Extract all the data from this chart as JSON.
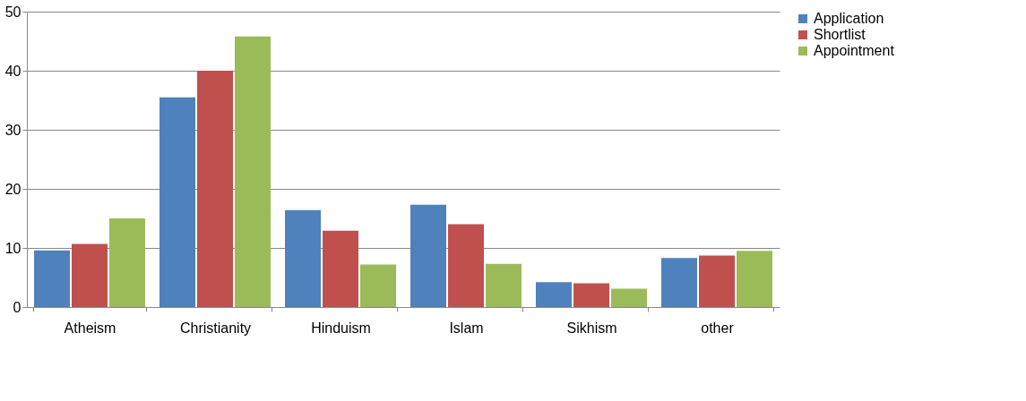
{
  "chart_data": {
    "type": "bar",
    "categories": [
      "Atheism",
      "Christianity",
      "Hinduism",
      "Islam",
      "Sikhism",
      "other"
    ],
    "series": [
      {
        "name": "Application",
        "color": "#4f81bd",
        "values": [
          9.6,
          35.5,
          16.4,
          17.3,
          4.2,
          8.3
        ]
      },
      {
        "name": "Shortlist",
        "color": "#c0504d",
        "values": [
          10.7,
          40.0,
          12.9,
          14.0,
          4.0,
          8.7
        ]
      },
      {
        "name": "Appointment",
        "color": "#9bbb59",
        "values": [
          15.0,
          45.8,
          7.2,
          7.3,
          3.1,
          9.5
        ]
      }
    ],
    "ylim": [
      0,
      50
    ],
    "yticks": [
      0,
      10,
      20,
      30,
      40,
      50
    ],
    "grid": "y",
    "legend": "right"
  }
}
